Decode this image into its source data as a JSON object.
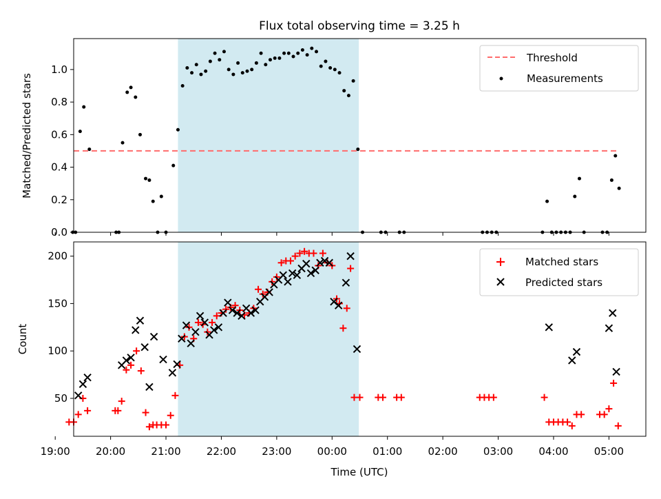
{
  "chart_data": {
    "title": "Flux total observing time = 3.25 h",
    "x_ticks": [
      "19:00",
      "20:00",
      "21:00",
      "22:00",
      "23:00",
      "00:00",
      "01:00",
      "02:00",
      "03:00",
      "04:00",
      "05:00"
    ],
    "xlabel": "Time (UTC)",
    "xlim": [
      "19:20",
      "05:40"
    ],
    "shaded_interval": [
      "21:13",
      "00:29"
    ],
    "colors": {
      "shade": "#add8e6",
      "threshold": "#ff6b6b",
      "matched": "#ff0000",
      "predicted": "#000000",
      "measurements": "#000000"
    },
    "panels": [
      {
        "type": "scatter",
        "ylabel": "Matched/Predicted stars",
        "ylim": [
          0,
          1.19
        ],
        "y_ticks": [
          "0.0",
          "0.2",
          "0.4",
          "0.6",
          "0.8",
          "1.0"
        ],
        "legend_position": "top-right",
        "series": [
          {
            "name": "Threshold",
            "style": "dashed-line",
            "points": [
              [
                "19:20",
                0.5
              ],
              [
                "05:10",
                0.5
              ]
            ]
          },
          {
            "name": "Measurements",
            "style": "dot",
            "points": [
              [
                "19:19",
                0
              ],
              [
                "19:22",
                0
              ],
              [
                "19:27",
                0.62
              ],
              [
                "19:31",
                0.77
              ],
              [
                "19:37",
                0.51
              ],
              [
                "20:06",
                0
              ],
              [
                "20:09",
                0
              ],
              [
                "20:13",
                0.55
              ],
              [
                "20:18",
                0.86
              ],
              [
                "20:22",
                0.89
              ],
              [
                "20:27",
                0.83
              ],
              [
                "20:32",
                0.6
              ],
              [
                "20:38",
                0.33
              ],
              [
                "20:42",
                0.32
              ],
              [
                "20:46",
                0.19
              ],
              [
                "20:51",
                0
              ],
              [
                "20:55",
                0.22
              ],
              [
                "21:00",
                0
              ],
              [
                "21:08",
                0.41
              ],
              [
                "21:13",
                0.63
              ],
              [
                "21:18",
                0.9
              ],
              [
                "21:23",
                1.01
              ],
              [
                "21:28",
                0.98
              ],
              [
                "21:33",
                1.03
              ],
              [
                "21:38",
                0.97
              ],
              [
                "21:43",
                0.99
              ],
              [
                "21:48",
                1.05
              ],
              [
                "21:53",
                1.1
              ],
              [
                "21:58",
                1.06
              ],
              [
                "22:03",
                1.11
              ],
              [
                "22:08",
                1.0
              ],
              [
                "22:13",
                0.97
              ],
              [
                "22:18",
                1.04
              ],
              [
                "22:23",
                0.98
              ],
              [
                "22:28",
                0.99
              ],
              [
                "22:33",
                1.0
              ],
              [
                "22:38",
                1.04
              ],
              [
                "22:43",
                1.1
              ],
              [
                "22:48",
                1.03
              ],
              [
                "22:53",
                1.06
              ],
              [
                "22:58",
                1.07
              ],
              [
                "23:03",
                1.07
              ],
              [
                "23:08",
                1.1
              ],
              [
                "23:13",
                1.1
              ],
              [
                "23:18",
                1.08
              ],
              [
                "23:23",
                1.1
              ],
              [
                "23:28",
                1.12
              ],
              [
                "23:33",
                1.09
              ],
              [
                "23:38",
                1.13
              ],
              [
                "23:43",
                1.11
              ],
              [
                "23:48",
                1.02
              ],
              [
                "23:53",
                1.05
              ],
              [
                "23:58",
                1.01
              ],
              [
                "00:03",
                1.0
              ],
              [
                "00:08",
                0.98
              ],
              [
                "00:13",
                0.87
              ],
              [
                "00:18",
                0.84
              ],
              [
                "00:23",
                0.93
              ],
              [
                "00:28",
                0.51
              ],
              [
                "00:33",
                0
              ],
              [
                "00:53",
                0
              ],
              [
                "00:58",
                0
              ],
              [
                "01:13",
                0
              ],
              [
                "01:18",
                0
              ],
              [
                "02:43",
                0
              ],
              [
                "02:48",
                0
              ],
              [
                "02:53",
                0
              ],
              [
                "02:58",
                0
              ],
              [
                "03:48",
                0
              ],
              [
                "03:53",
                0.19
              ],
              [
                "03:58",
                0
              ],
              [
                "04:03",
                0
              ],
              [
                "04:08",
                0
              ],
              [
                "04:13",
                0
              ],
              [
                "04:18",
                0
              ],
              [
                "04:23",
                0.22
              ],
              [
                "04:28",
                0.33
              ],
              [
                "04:33",
                0
              ],
              [
                "04:53",
                0
              ],
              [
                "04:58",
                0
              ],
              [
                "05:03",
                0.32
              ],
              [
                "05:07",
                0.47
              ],
              [
                "05:11",
                0.27
              ]
            ]
          }
        ]
      },
      {
        "type": "scatter",
        "ylabel": "Count",
        "ylim": [
          10,
          215
        ],
        "y_ticks": [
          "50",
          "100",
          "150",
          "200"
        ],
        "legend_position": "top-right",
        "series": [
          {
            "name": "Matched stars",
            "style": "plus",
            "points": [
              [
                "19:15",
                25
              ],
              [
                "19:20",
                25
              ],
              [
                "19:25",
                33
              ],
              [
                "19:30",
                50
              ],
              [
                "19:35",
                37
              ],
              [
                "20:05",
                37
              ],
              [
                "20:08",
                37
              ],
              [
                "20:12",
                47
              ],
              [
                "20:17",
                80
              ],
              [
                "20:22",
                85
              ],
              [
                "20:28",
                100
              ],
              [
                "20:33",
                79
              ],
              [
                "20:38",
                35
              ],
              [
                "20:42",
                20
              ],
              [
                "20:46",
                22
              ],
              [
                "20:50",
                22
              ],
              [
                "20:55",
                22
              ],
              [
                "21:00",
                22
              ],
              [
                "21:05",
                32
              ],
              [
                "21:10",
                53
              ],
              [
                "21:15",
                85
              ],
              [
                "21:20",
                115
              ],
              [
                "21:25",
                125
              ],
              [
                "21:30",
                113
              ],
              [
                "21:35",
                130
              ],
              [
                "21:40",
                128
              ],
              [
                "21:45",
                120
              ],
              [
                "21:50",
                130
              ],
              [
                "21:55",
                137
              ],
              [
                "22:00",
                140
              ],
              [
                "22:05",
                144
              ],
              [
                "22:10",
                146
              ],
              [
                "22:15",
                148
              ],
              [
                "22:20",
                143
              ],
              [
                "22:25",
                138
              ],
              [
                "22:30",
                140
              ],
              [
                "22:35",
                145
              ],
              [
                "22:40",
                165
              ],
              [
                "22:45",
                160
              ],
              [
                "22:50",
                162
              ],
              [
                "22:55",
                173
              ],
              [
                "23:00",
                178
              ],
              [
                "23:05",
                193
              ],
              [
                "23:10",
                195
              ],
              [
                "23:15",
                195
              ],
              [
                "23:20",
                200
              ],
              [
                "23:25",
                203
              ],
              [
                "23:30",
                205
              ],
              [
                "23:35",
                203
              ],
              [
                "23:40",
                203
              ],
              [
                "23:45",
                190
              ],
              [
                "23:50",
                203
              ],
              [
                "23:55",
                193
              ],
              [
                "00:00",
                190
              ],
              [
                "00:05",
                155
              ],
              [
                "00:08",
                150
              ],
              [
                "00:12",
                124
              ],
              [
                "00:16",
                145
              ],
              [
                "00:20",
                187
              ],
              [
                "00:24",
                51
              ],
              [
                "00:30",
                51
              ],
              [
                "00:50",
                51
              ],
              [
                "00:55",
                51
              ],
              [
                "01:10",
                51
              ],
              [
                "01:15",
                51
              ],
              [
                "02:40",
                51
              ],
              [
                "02:45",
                51
              ],
              [
                "02:50",
                51
              ],
              [
                "02:55",
                51
              ],
              [
                "03:50",
                51
              ],
              [
                "03:55",
                25
              ],
              [
                "04:00",
                25
              ],
              [
                "04:05",
                25
              ],
              [
                "04:10",
                25
              ],
              [
                "04:15",
                25
              ],
              [
                "04:20",
                21
              ],
              [
                "04:25",
                33
              ],
              [
                "04:30",
                33
              ],
              [
                "04:50",
                33
              ],
              [
                "04:55",
                33
              ],
              [
                "05:00",
                39
              ],
              [
                "05:05",
                66
              ],
              [
                "05:10",
                21
              ]
            ]
          },
          {
            "name": "Predicted stars",
            "style": "x",
            "points": [
              [
                "19:25",
                53
              ],
              [
                "19:30",
                65
              ],
              [
                "19:35",
                72
              ],
              [
                "20:12",
                85
              ],
              [
                "20:17",
                90
              ],
              [
                "20:22",
                93
              ],
              [
                "20:27",
                122
              ],
              [
                "20:32",
                132
              ],
              [
                "20:37",
                104
              ],
              [
                "20:42",
                62
              ],
              [
                "20:47",
                115
              ],
              [
                "20:57",
                91
              ],
              [
                "21:07",
                77
              ],
              [
                "21:12",
                86
              ],
              [
                "21:17",
                113
              ],
              [
                "21:22",
                127
              ],
              [
                "21:27",
                108
              ],
              [
                "21:32",
                120
              ],
              [
                "21:37",
                137
              ],
              [
                "21:42",
                130
              ],
              [
                "21:47",
                117
              ],
              [
                "21:52",
                122
              ],
              [
                "21:57",
                125
              ],
              [
                "22:02",
                140
              ],
              [
                "22:07",
                151
              ],
              [
                "22:12",
                143
              ],
              [
                "22:17",
                140
              ],
              [
                "22:22",
                137
              ],
              [
                "22:27",
                145
              ],
              [
                "22:32",
                140
              ],
              [
                "22:37",
                143
              ],
              [
                "22:42",
                152
              ],
              [
                "22:47",
                157
              ],
              [
                "22:52",
                162
              ],
              [
                "22:57",
                170
              ],
              [
                "23:02",
                175
              ],
              [
                "23:07",
                180
              ],
              [
                "23:12",
                173
              ],
              [
                "23:17",
                182
              ],
              [
                "23:22",
                180
              ],
              [
                "23:27",
                187
              ],
              [
                "23:32",
                192
              ],
              [
                "23:37",
                182
              ],
              [
                "23:42",
                185
              ],
              [
                "23:47",
                193
              ],
              [
                "23:52",
                195
              ],
              [
                "23:57",
                193
              ],
              [
                "00:02",
                152
              ],
              [
                "00:07",
                148
              ],
              [
                "00:15",
                172
              ],
              [
                "00:20",
                200
              ],
              [
                "00:27",
                102
              ],
              [
                "03:55",
                125
              ],
              [
                "04:20",
                90
              ],
              [
                "04:25",
                99
              ],
              [
                "05:00",
                124
              ],
              [
                "05:04",
                140
              ],
              [
                "05:08",
                78
              ]
            ]
          }
        ]
      }
    ]
  }
}
